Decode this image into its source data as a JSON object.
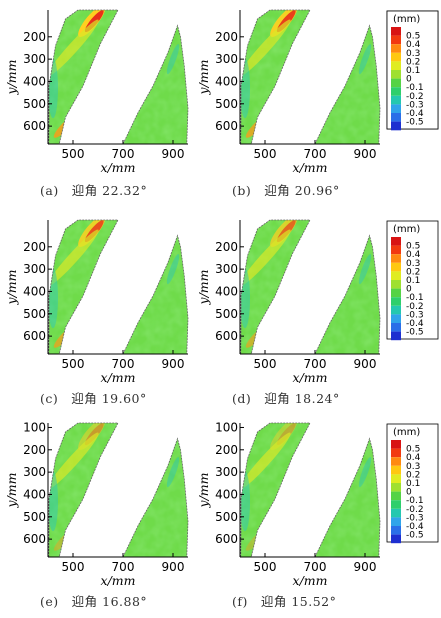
{
  "chart_data": [
    {
      "type": "heatmap",
      "caption": "(a)　迎角 22.32°",
      "xlabel": "x/mm",
      "ylabel": "y/mm",
      "xticks": [
        500,
        700,
        900
      ],
      "yticks": [
        200,
        300,
        400,
        500,
        600
      ],
      "xlim": [
        400,
        960
      ],
      "ylim": [
        680,
        80
      ],
      "has_colorbar": true
    },
    {
      "type": "heatmap",
      "caption": "(b)　迎角 20.96°",
      "xlabel": "x/mm",
      "ylabel": "y/mm",
      "xticks": [
        500,
        700,
        900
      ],
      "yticks": [
        200,
        300,
        400,
        500,
        600
      ],
      "xlim": [
        400,
        960
      ],
      "ylim": [
        680,
        80
      ],
      "has_colorbar": true
    },
    {
      "type": "heatmap",
      "caption": "(c)　迎角 19.60°",
      "xlabel": "x/mm",
      "ylabel": "y/mm",
      "xticks": [
        500,
        700,
        900
      ],
      "yticks": [
        200,
        300,
        400,
        500,
        600
      ],
      "xlim": [
        400,
        960
      ],
      "ylim": [
        680,
        80
      ],
      "has_colorbar": false
    },
    {
      "type": "heatmap",
      "caption": "(d)　迎角 18.24°",
      "xlabel": "x/mm",
      "ylabel": "y/mm",
      "xticks": [
        500,
        700,
        900
      ],
      "yticks": [
        200,
        300,
        400,
        500,
        600
      ],
      "xlim": [
        400,
        960
      ],
      "ylim": [
        680,
        80
      ],
      "has_colorbar": true
    },
    {
      "type": "heatmap",
      "caption": "(e)　迎角 16.88°",
      "xlabel": "x/mm",
      "ylabel": "y/mm",
      "xticks": [
        500,
        700,
        900
      ],
      "yticks": [
        100,
        200,
        300,
        400,
        500,
        600
      ],
      "xlim": [
        400,
        960
      ],
      "ylim": [
        680,
        80
      ],
      "has_colorbar": false
    },
    {
      "type": "heatmap",
      "caption": "(f)　迎角 15.52°",
      "xlabel": "x/mm",
      "ylabel": "y/mm",
      "xticks": [
        500,
        700,
        900
      ],
      "yticks": [
        100,
        200,
        300,
        400,
        500,
        600
      ],
      "xlim": [
        400,
        960
      ],
      "ylim": [
        680,
        80
      ],
      "has_colorbar": true
    }
  ],
  "colorbar": {
    "unit": "(mm)",
    "levels": [
      "0.5",
      "0.4",
      "0.3",
      "0.2",
      "0.1",
      "0",
      "-0.1",
      "-0.2",
      "-0.3",
      "-0.4",
      "-0.5"
    ],
    "colors": [
      "#d81414",
      "#f23a10",
      "#ff8a10",
      "#ffc810",
      "#e0ec20",
      "#9fe030",
      "#55d345",
      "#2ecf6c",
      "#24c8b0",
      "#30a4ea",
      "#2a6fe8",
      "#1d2fd0"
    ]
  },
  "colors": {
    "main": "#6fdb4a",
    "outline": "#666666"
  }
}
